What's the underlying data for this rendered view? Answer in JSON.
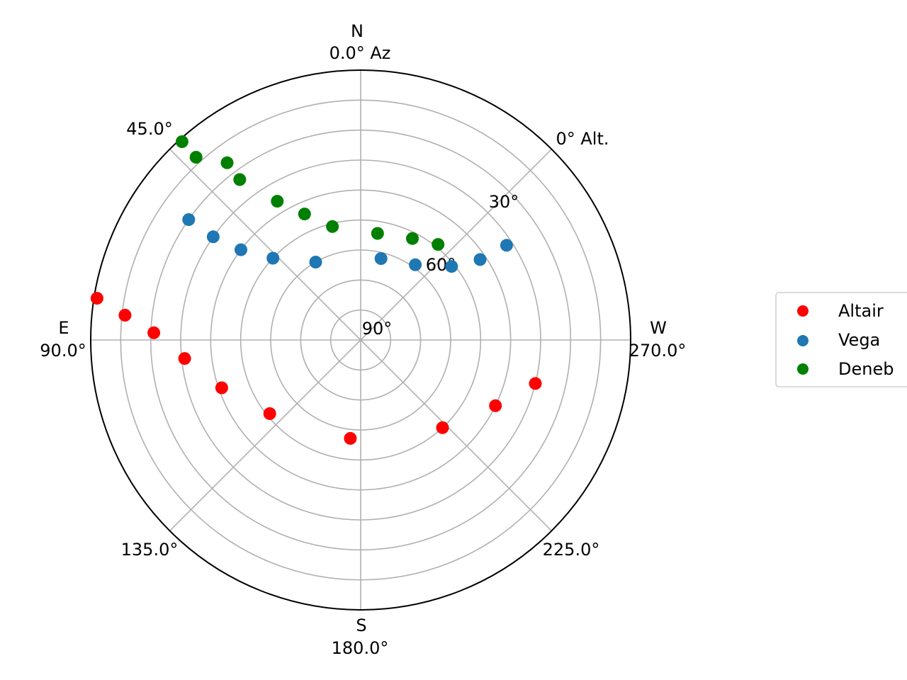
{
  "chart_data": {
    "type": "scatter",
    "projection": "polar",
    "theta_zero": "N",
    "theta_direction": "counterclockwise",
    "r_axis": "altitude",
    "r_outer": 0,
    "r_center": 90,
    "grid": true,
    "legend_position": "right",
    "north": {
      "letter": "N",
      "angle": "0.0° Az"
    },
    "east": {
      "letter": "E",
      "angle": "90.0°"
    },
    "south": {
      "letter": "S",
      "angle": "180.0°"
    },
    "west": {
      "letter": "W",
      "angle": "270.0°"
    },
    "ne_label": "45.0°",
    "se_label": "135.0°",
    "sw_label": "225.0°",
    "nw_label": "0° Alt.",
    "alt_ticks": [
      {
        "value": 30,
        "label": "30°"
      },
      {
        "value": 60,
        "label": "60°"
      },
      {
        "value": 90,
        "label": "90°"
      }
    ],
    "series": [
      {
        "name": "Altair",
        "color": "#ff0000",
        "points": [
          {
            "az": 81,
            "alt": 1
          },
          {
            "az": 84,
            "alt": 11
          },
          {
            "az": 88,
            "alt": 21
          },
          {
            "az": 96,
            "alt": 31
          },
          {
            "az": 109,
            "alt": 41
          },
          {
            "az": 129,
            "alt": 51
          },
          {
            "az": 174,
            "alt": 57
          },
          {
            "az": 223,
            "alt": 50
          },
          {
            "az": 244,
            "alt": 40
          },
          {
            "az": 256,
            "alt": 30
          }
        ]
      },
      {
        "name": "Vega",
        "color": "#1f77b4",
        "points": [
          {
            "az": 55,
            "alt": 20
          },
          {
            "az": 55,
            "alt": 30
          },
          {
            "az": 53,
            "alt": 40
          },
          {
            "az": 47,
            "alt": 50
          },
          {
            "az": 30,
            "alt": 60
          },
          {
            "az": 346,
            "alt": 62
          },
          {
            "az": 324,
            "alt": 59
          },
          {
            "az": 309,
            "alt": 51
          },
          {
            "az": 304,
            "alt": 42
          },
          {
            "az": 303,
            "alt": 32
          }
        ]
      },
      {
        "name": "Deneb",
        "color": "#008000",
        "points": [
          {
            "az": 42,
            "alt": 1
          },
          {
            "az": 42,
            "alt": 8
          },
          {
            "az": 37,
            "alt": 16
          },
          {
            "az": 37,
            "alt": 23
          },
          {
            "az": 31,
            "alt": 36
          },
          {
            "az": 24,
            "alt": 44
          },
          {
            "az": 14,
            "alt": 51
          },
          {
            "az": 351,
            "alt": 54
          },
          {
            "az": 333,
            "alt": 52
          },
          {
            "az": 321,
            "alt": 49
          }
        ]
      }
    ]
  }
}
